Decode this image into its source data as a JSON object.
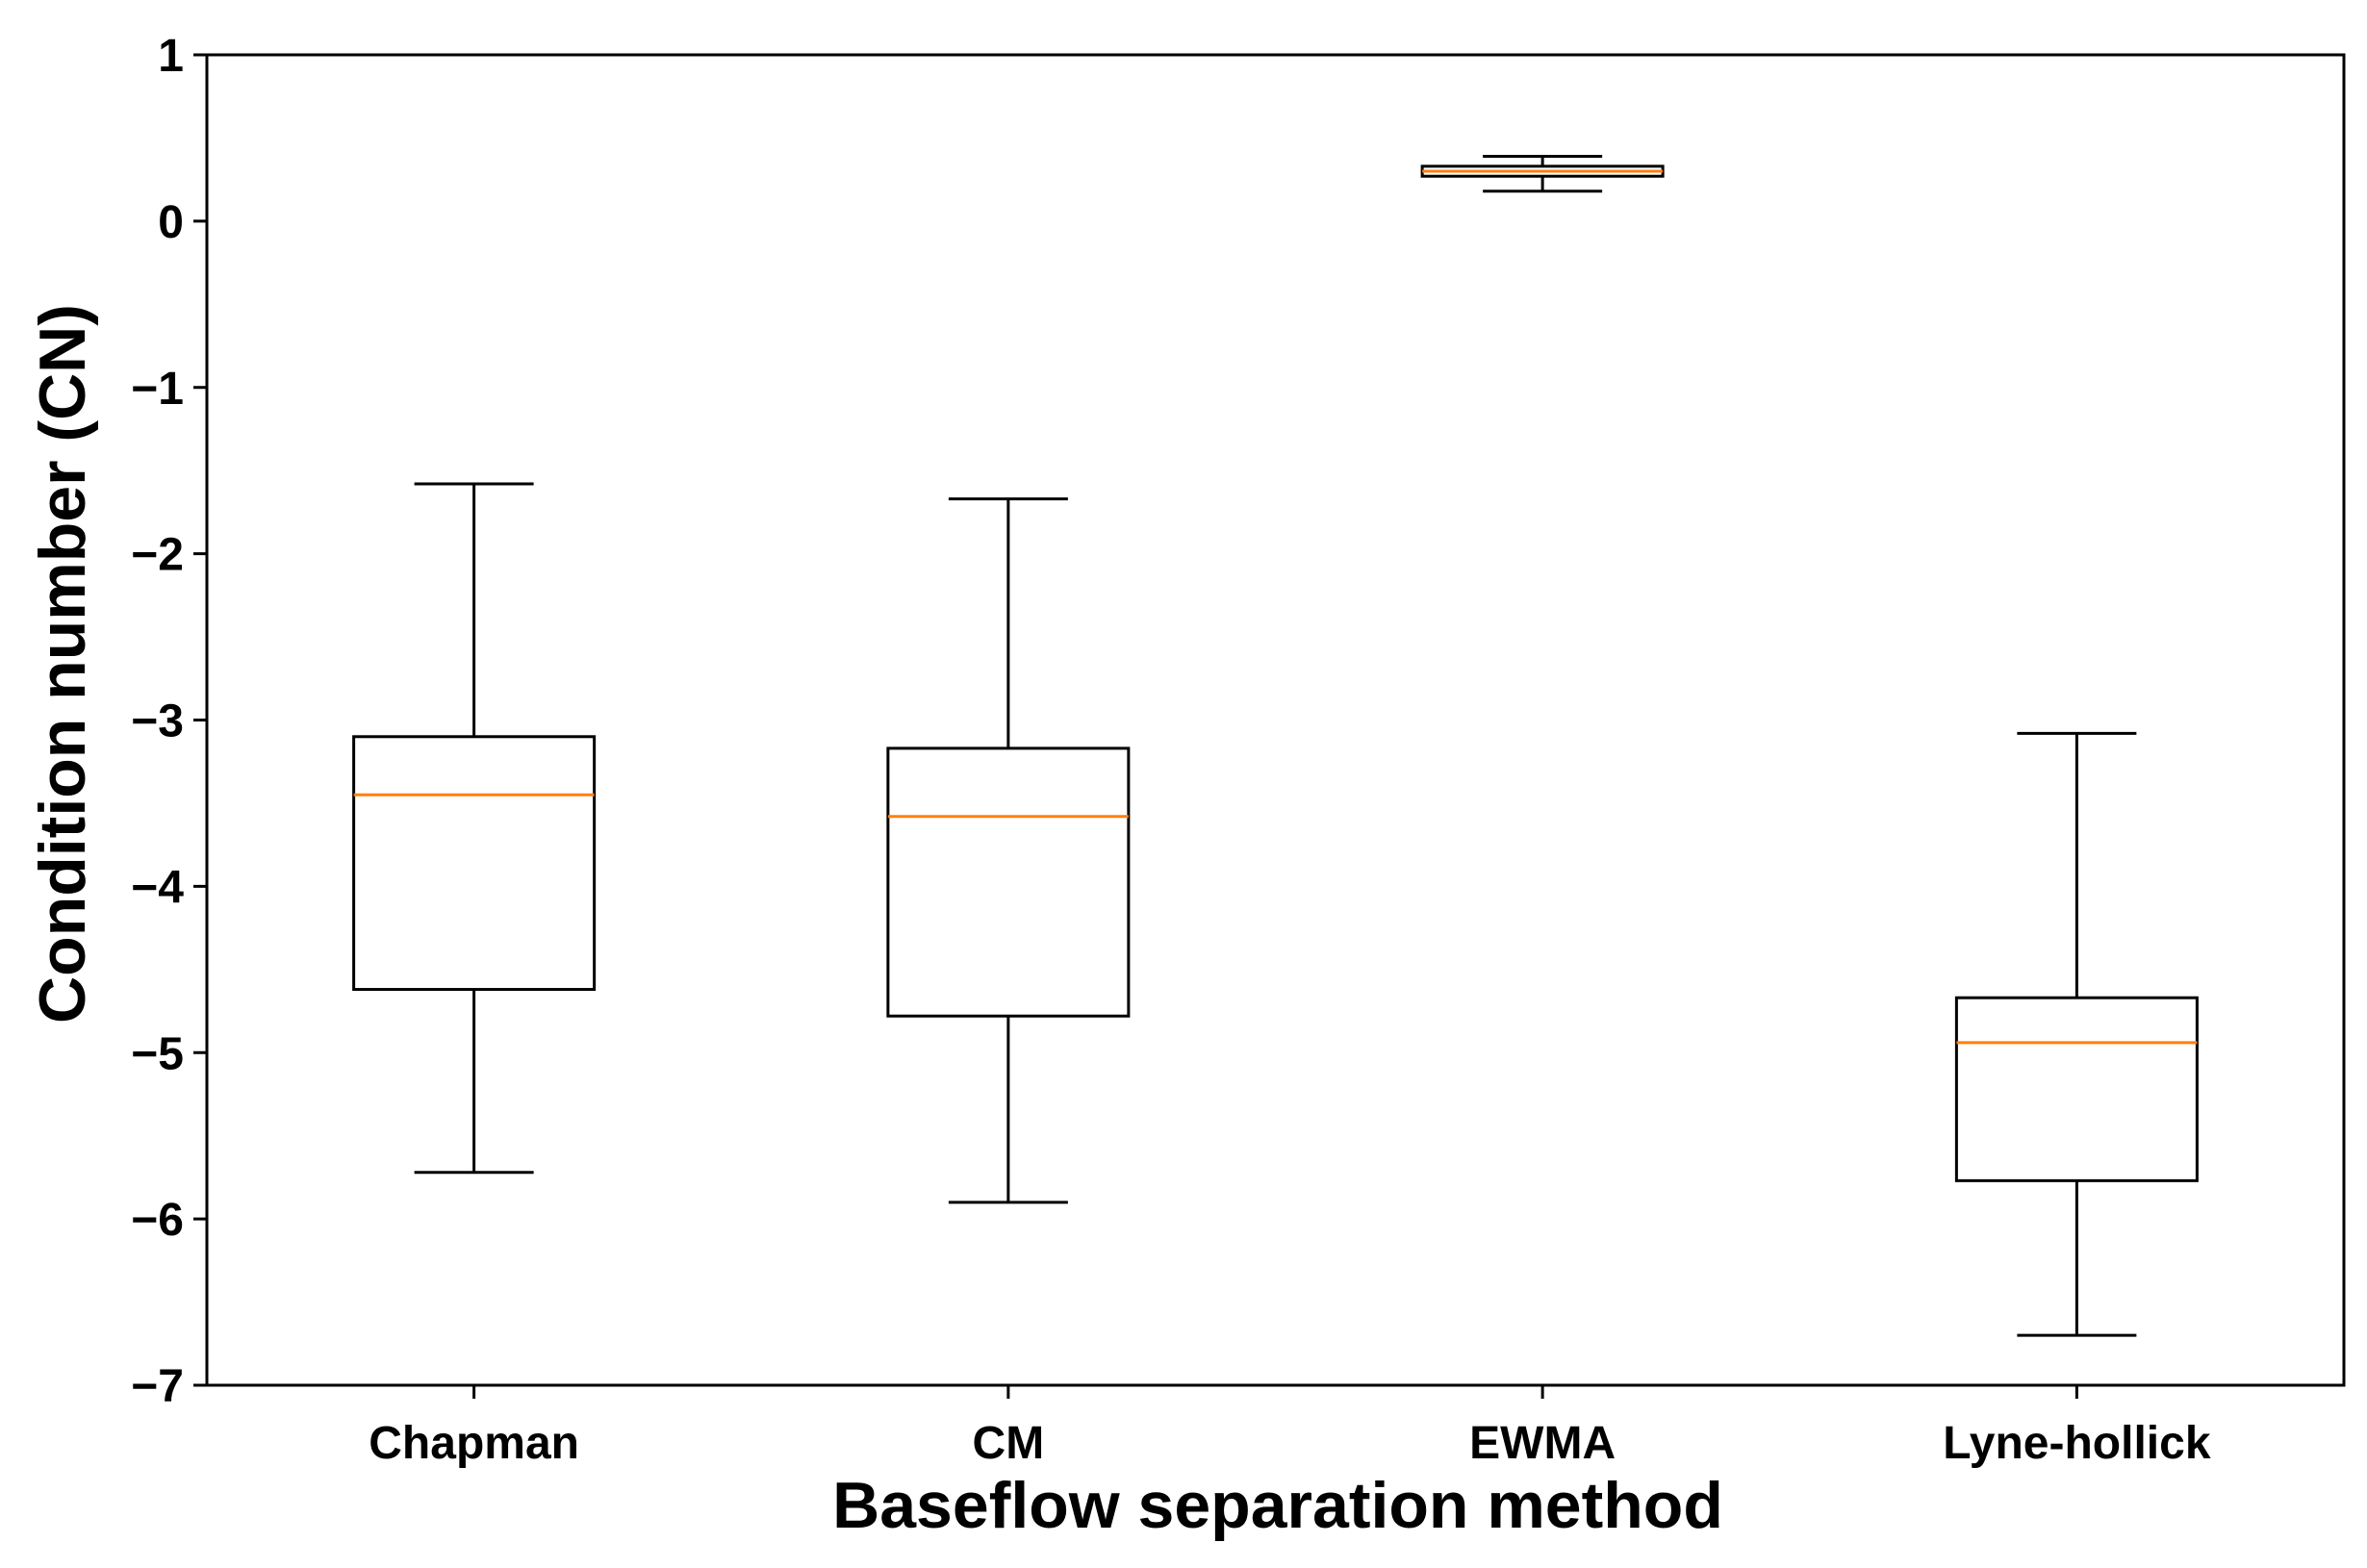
{
  "chart_data": {
    "type": "box",
    "title": "",
    "xlabel": "Baseflow separation method",
    "ylabel": "Condition number (CN)",
    "ylim": [
      -7,
      1
    ],
    "yticks": [
      1,
      0,
      -1,
      -2,
      -3,
      -4,
      -5,
      -6,
      -7
    ],
    "ytick_labels": [
      "1",
      "0",
      "−1",
      "−2",
      "−3",
      "−4",
      "−5",
      "−6",
      "−7"
    ],
    "grid": false,
    "legend": "none",
    "categories": [
      "Chapman",
      "CM",
      "EWMA",
      "Lyne-hollick"
    ],
    "boxes": [
      {
        "category": "Chapman",
        "whisker_low": -5.72,
        "q1": -4.62,
        "median": -3.45,
        "q3": -3.1,
        "whisker_high": -1.58
      },
      {
        "category": "CM",
        "whisker_low": -5.9,
        "q1": -4.78,
        "median": -3.58,
        "q3": -3.17,
        "whisker_high": -1.67
      },
      {
        "category": "EWMA",
        "whisker_low": 0.18,
        "q1": 0.27,
        "median": 0.3,
        "q3": 0.33,
        "whisker_high": 0.39
      },
      {
        "category": "Lyne-hollick",
        "whisker_low": -6.7,
        "q1": -5.77,
        "median": -4.94,
        "q3": -4.67,
        "whisker_high": -3.08
      }
    ],
    "colors": {
      "box_edge": "#000000",
      "median": "#ff7f0e",
      "axes": "#000000"
    }
  }
}
